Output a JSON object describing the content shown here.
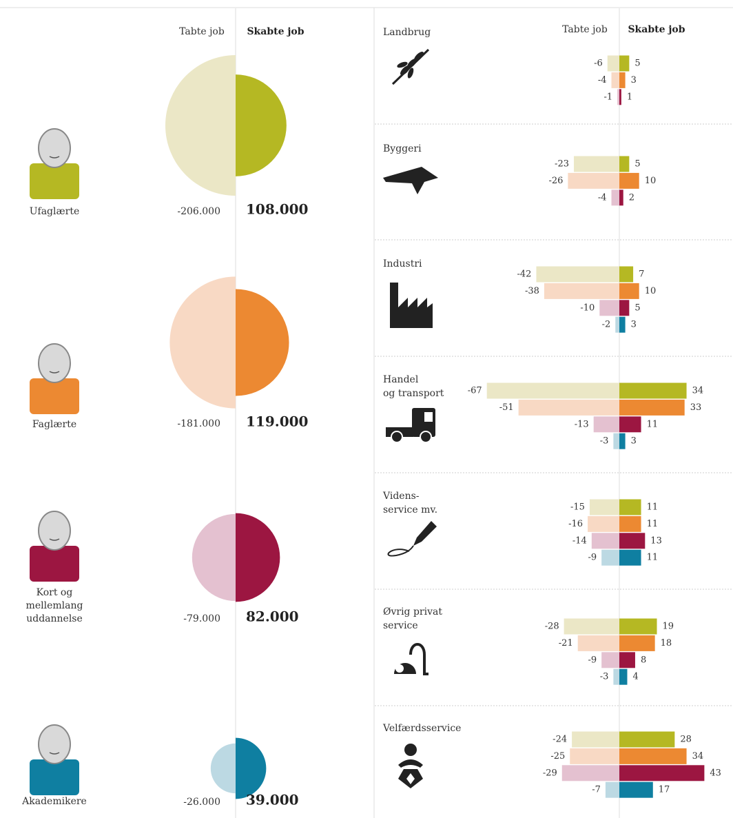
{
  "chart_data": [
    {
      "type": "half-circle",
      "categories": [
        [
          "Ufaglærte"
        ],
        [
          "Faglærte"
        ],
        [
          "Kort og",
          "mellemlang",
          "uddannelse"
        ],
        [
          "Akademikere"
        ]
      ],
      "series": [
        {
          "name": "Tabte job",
          "colors": [
            "#ebe7c6",
            "#f8d9c4",
            "#e4c1d0",
            "#bcd9e3"
          ],
          "values": [
            -206000,
            -181000,
            -79000,
            -26000
          ],
          "value_labels": [
            "-206.000",
            "-181.000",
            "-79.000",
            "-26.000"
          ]
        },
        {
          "name": "Skabte job",
          "colors": [
            "#b5b823",
            "#ec8932",
            "#9c1641",
            "#0f7fa1"
          ],
          "values": [
            108000,
            119000,
            82000,
            39000
          ],
          "value_labels": [
            "108.000",
            "119.000",
            "82.000",
            "39.000"
          ]
        }
      ]
    },
    {
      "type": "butterfly",
      "categories": [
        [
          "Landbrug"
        ],
        [
          "Byggeri"
        ],
        [
          "Industri"
        ],
        [
          "Handel",
          "og transport"
        ],
        [
          "Videns-",
          "service mv."
        ],
        [
          "Øvrig privat",
          "service"
        ],
        [
          "Velfærdsservice"
        ]
      ],
      "series": [
        {
          "name": "Tabte job",
          "colors": [
            "#ebe7c6",
            "#f8d9c4",
            "#e4c1d0",
            "#bcd9e3"
          ],
          "values": [
            [
              -6,
              -4,
              -1
            ],
            [
              -23,
              -26,
              -4
            ],
            [
              -42,
              -38,
              -10,
              -2
            ],
            [
              -67,
              -51,
              -13,
              -3
            ],
            [
              -15,
              -16,
              -14,
              -9
            ],
            [
              -28,
              -21,
              -9,
              -3
            ],
            [
              -24,
              -25,
              -29,
              -7
            ]
          ]
        },
        {
          "name": "Skabte job",
          "colors": [
            "#b5b823",
            "#ec8932",
            "#9c1641",
            "#0f7fa1"
          ],
          "values": [
            [
              5,
              3,
              1
            ],
            [
              5,
              10,
              2
            ],
            [
              7,
              10,
              5,
              3
            ],
            [
              34,
              33,
              11,
              3
            ],
            [
              11,
              11,
              13,
              11
            ],
            [
              19,
              18,
              8,
              4
            ],
            [
              28,
              34,
              43,
              17
            ]
          ]
        }
      ]
    }
  ]
}
